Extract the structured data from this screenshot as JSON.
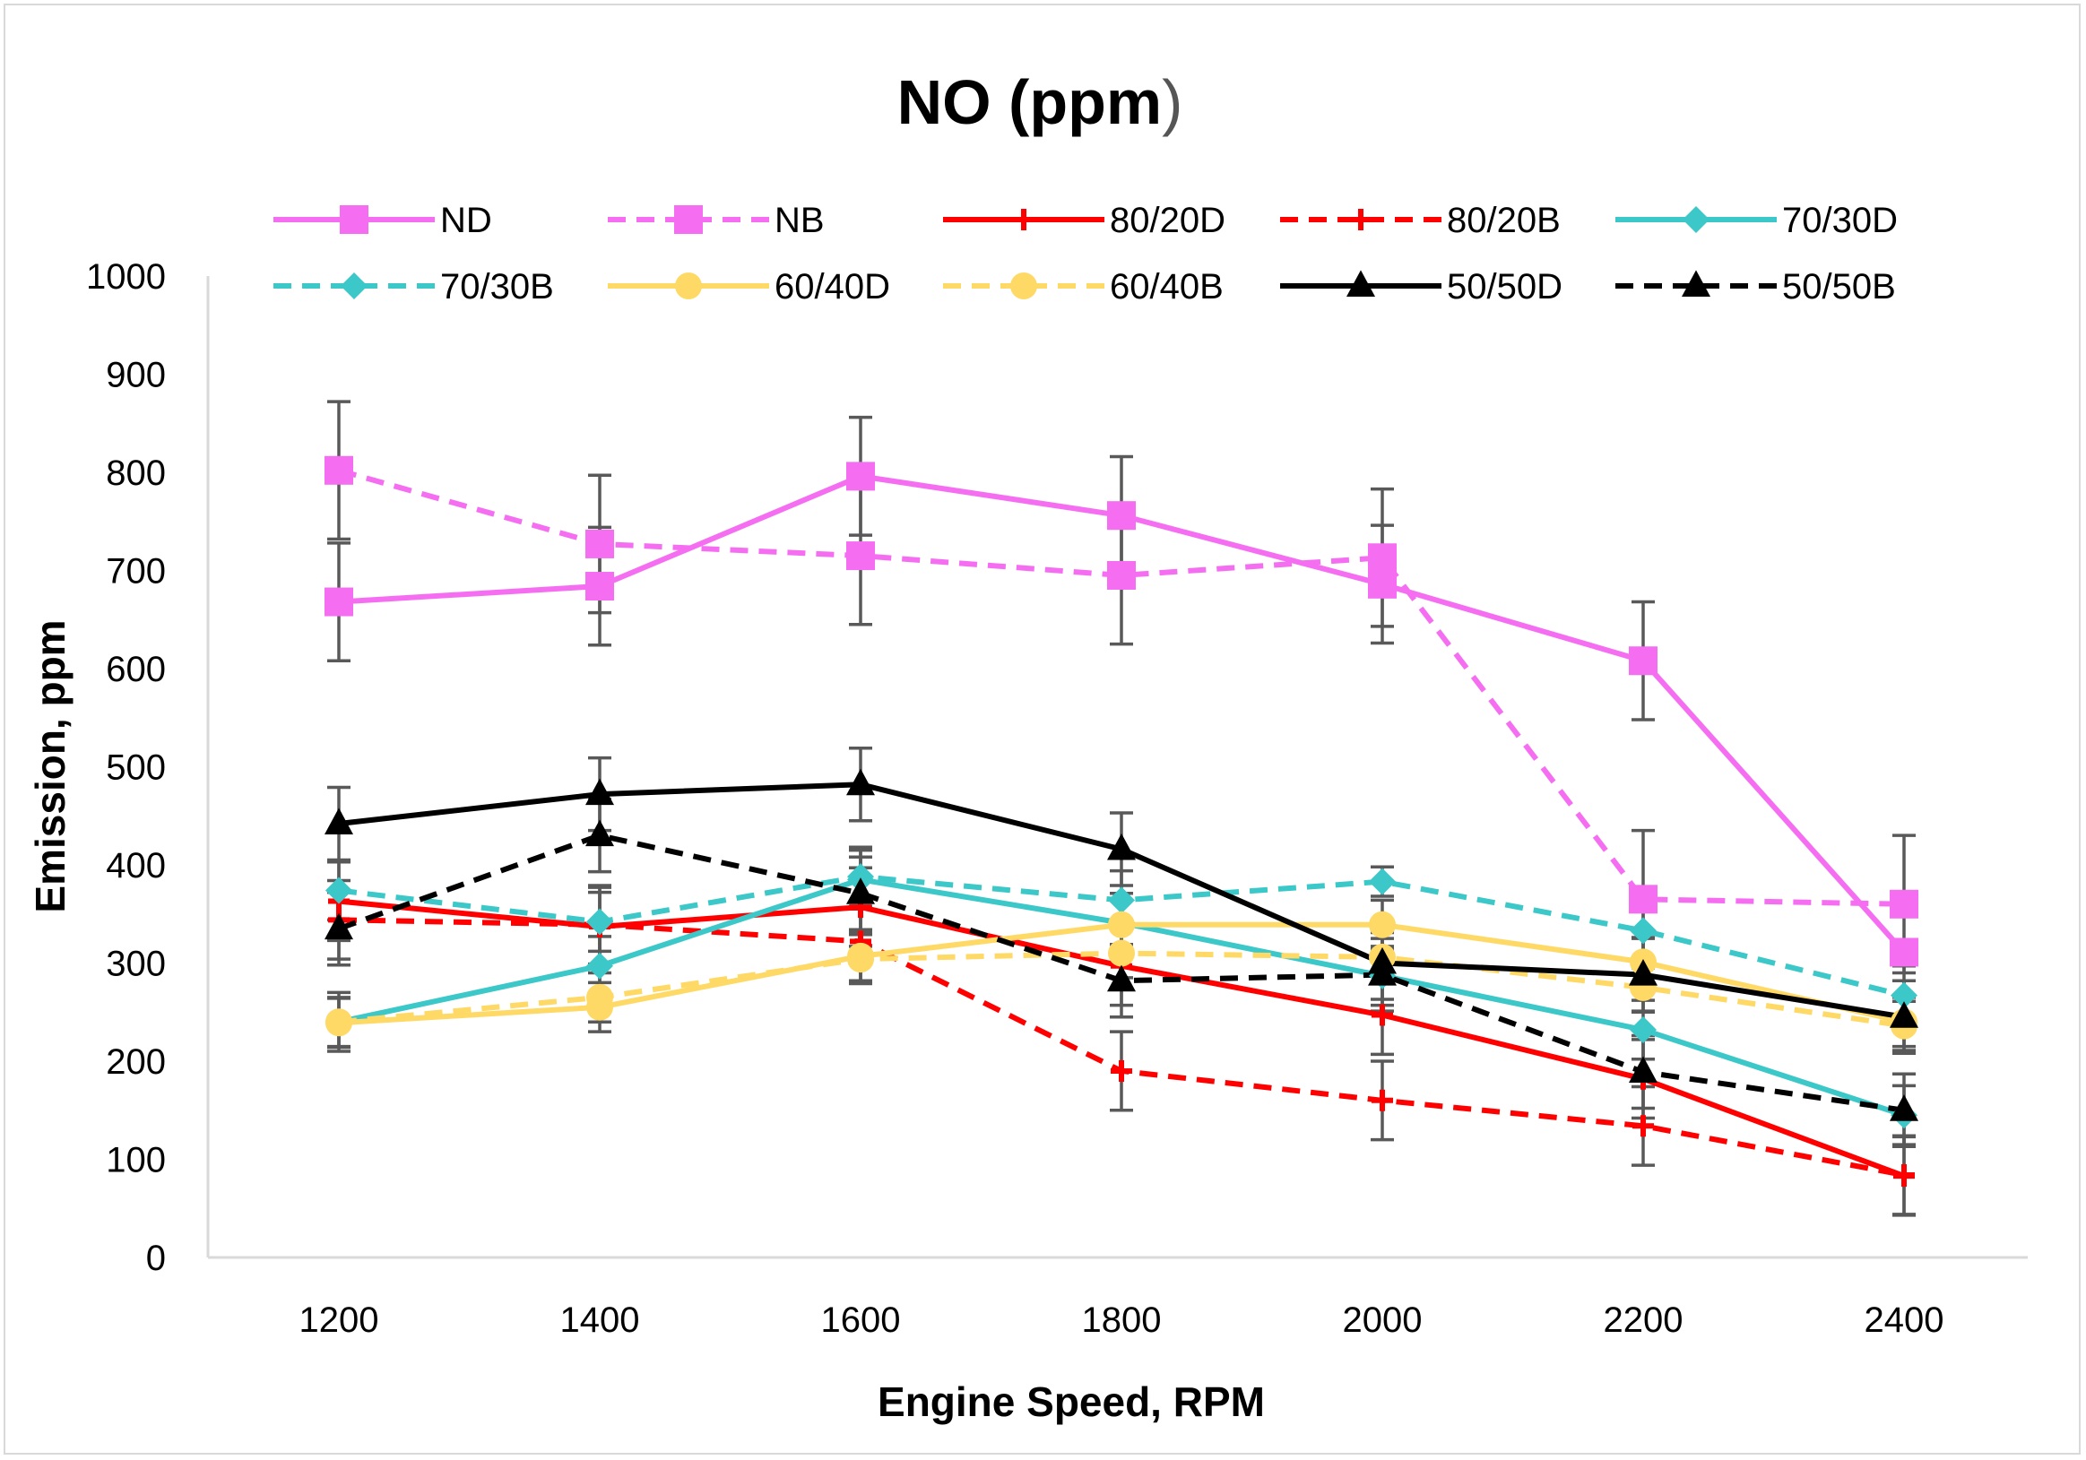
{
  "chart_data": {
    "type": "line",
    "title": "NO (ppm",
    "title_suffix": ")",
    "xlabel": "Engine Speed, RPM",
    "ylabel": "Emission, ppm",
    "ylim": [
      0,
      1000
    ],
    "yticks": [
      0,
      100,
      200,
      300,
      400,
      500,
      600,
      700,
      800,
      900,
      1000
    ],
    "categories": [
      "1200",
      "1400",
      "1600",
      "1800",
      "2000",
      "2200",
      "2400"
    ],
    "legend_position": "top",
    "error_bar_color": "#595959",
    "series": [
      {
        "name": "ND",
        "color": "#f56ef2",
        "dash": false,
        "marker": "square",
        "values": [
          668,
          684,
          796,
          756,
          686,
          608,
          311
        ],
        "errors": [
          60,
          60,
          60,
          60,
          60,
          60,
          0
        ]
      },
      {
        "name": "NB",
        "color": "#f56ef2",
        "dash": true,
        "marker": "square",
        "values": [
          802,
          727,
          715,
          695,
          713,
          365,
          360
        ],
        "errors": [
          70,
          70,
          70,
          70,
          70,
          70,
          70
        ]
      },
      {
        "name": "80/20D",
        "color": "#ff0000",
        "dash": false,
        "marker": "plus",
        "values": [
          363,
          337,
          357,
          297,
          247,
          182,
          83
        ],
        "errors": [
          40,
          40,
          40,
          40,
          40,
          40,
          40
        ]
      },
      {
        "name": "80/20B",
        "color": "#ff0000",
        "dash": true,
        "marker": "plus",
        "values": [
          344,
          339,
          322,
          190,
          160,
          134,
          84
        ],
        "errors": [
          40,
          40,
          40,
          40,
          40,
          40,
          40
        ]
      },
      {
        "name": "70/30D",
        "color": "#3cc8c8",
        "dash": false,
        "marker": "diamond",
        "values": [
          240,
          297,
          385,
          341,
          287,
          232,
          145
        ],
        "errors": [
          30,
          30,
          30,
          30,
          30,
          30,
          30
        ]
      },
      {
        "name": "70/30B",
        "color": "#3cc8c8",
        "dash": true,
        "marker": "diamond",
        "values": [
          374,
          342,
          388,
          364,
          383,
          333,
          267
        ],
        "errors": [
          30,
          30,
          30,
          30,
          15,
          30,
          30
        ]
      },
      {
        "name": "60/40D",
        "color": "#ffd966",
        "dash": false,
        "marker": "circle",
        "values": [
          239,
          255,
          307,
          339,
          339,
          301,
          240
        ],
        "errors": [
          25,
          25,
          25,
          25,
          25,
          25,
          25
        ]
      },
      {
        "name": "60/40B",
        "color": "#ffd966",
        "dash": true,
        "marker": "circle",
        "values": [
          240,
          265,
          304,
          310,
          306,
          275,
          236
        ],
        "errors": [
          25,
          25,
          25,
          25,
          25,
          25,
          25
        ]
      },
      {
        "name": "50/50D",
        "color": "#000000",
        "dash": false,
        "marker": "triangle",
        "values": [
          442,
          472,
          482,
          416,
          300,
          288,
          245
        ],
        "errors": [
          37,
          37,
          37,
          37,
          37,
          37,
          37
        ]
      },
      {
        "name": "50/50B",
        "color": "#000000",
        "dash": true,
        "marker": "triangle",
        "values": [
          335,
          430,
          371,
          282,
          288,
          189,
          150
        ],
        "errors": [
          37,
          37,
          37,
          37,
          37,
          37,
          37
        ]
      }
    ]
  }
}
